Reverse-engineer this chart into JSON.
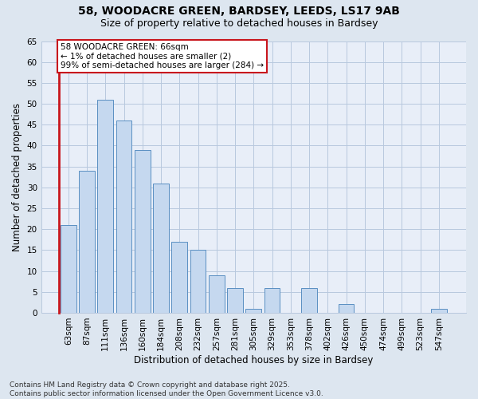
{
  "title_line1": "58, WOODACRE GREEN, BARDSEY, LEEDS, LS17 9AB",
  "title_line2": "Size of property relative to detached houses in Bardsey",
  "xlabel": "Distribution of detached houses by size in Bardsey",
  "ylabel": "Number of detached properties",
  "categories": [
    "63sqm",
    "87sqm",
    "111sqm",
    "136sqm",
    "160sqm",
    "184sqm",
    "208sqm",
    "232sqm",
    "257sqm",
    "281sqm",
    "305sqm",
    "329sqm",
    "353sqm",
    "378sqm",
    "402sqm",
    "426sqm",
    "450sqm",
    "474sqm",
    "499sqm",
    "523sqm",
    "547sqm"
  ],
  "values": [
    21,
    34,
    51,
    46,
    39,
    31,
    17,
    15,
    9,
    6,
    1,
    6,
    0,
    6,
    0,
    2,
    0,
    0,
    0,
    0,
    1
  ],
  "bar_color": "#c5d8ef",
  "bar_edge_color": "#5a8fc2",
  "highlight_color": "#c8161d",
  "ylim": [
    0,
    65
  ],
  "yticks": [
    0,
    5,
    10,
    15,
    20,
    25,
    30,
    35,
    40,
    45,
    50,
    55,
    60,
    65
  ],
  "annotation_line1": "58 WOODACRE GREEN: 66sqm",
  "annotation_line2": "← 1% of detached houses are smaller (2)",
  "annotation_line3": "99% of semi-detached houses are larger (284) →",
  "annotation_box_color": "#ffffff",
  "annotation_box_edge_color": "#c8161d",
  "footer_text": "Contains HM Land Registry data © Crown copyright and database right 2025.\nContains public sector information licensed under the Open Government Licence v3.0.",
  "bg_color": "#dde6f0",
  "plot_bg_color": "#e8eef8",
  "grid_color": "#b8c8de",
  "title_fontsize": 10,
  "subtitle_fontsize": 9,
  "axis_label_fontsize": 8.5,
  "tick_fontsize": 7.5,
  "annotation_fontsize": 7.5,
  "footer_fontsize": 6.5
}
